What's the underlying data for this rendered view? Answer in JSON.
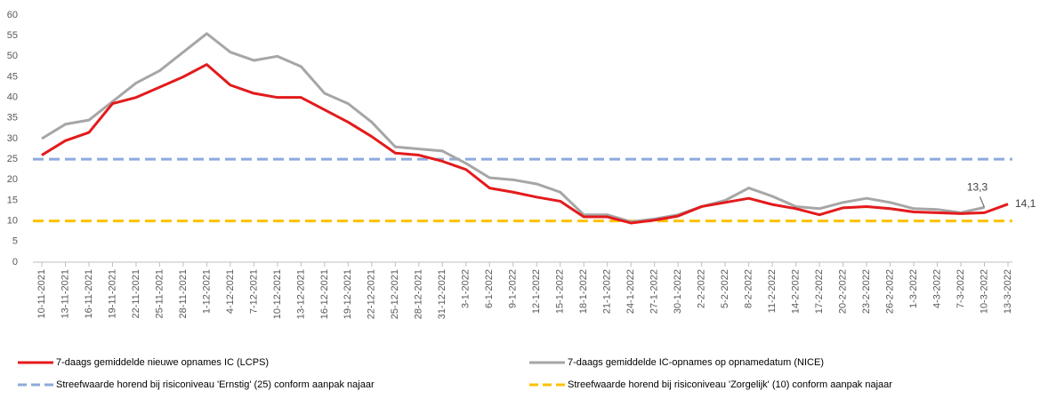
{
  "chart_data": {
    "type": "line",
    "categories": [
      "10-11-2021",
      "13-11-2021",
      "16-11-2021",
      "19-11-2021",
      "22-11-2021",
      "25-11-2021",
      "28-11-2021",
      "1-12-2021",
      "4-12-2021",
      "7-12-2021",
      "10-12-2021",
      "13-12-2021",
      "16-12-2021",
      "19-12-2021",
      "22-12-2021",
      "25-12-2021",
      "28-12-2021",
      "31-12-2021",
      "3-1-2022",
      "6-1-2022",
      "9-1-2022",
      "12-1-2022",
      "15-1-2022",
      "18-1-2022",
      "21-1-2022",
      "24-1-2022",
      "27-1-2022",
      "30-1-2022",
      "2-2-2022",
      "5-2-2022",
      "8-2-2022",
      "11-2-2022",
      "14-2-2022",
      "17-2-2022",
      "20-2-2022",
      "23-2-2022",
      "26-2-2022",
      "1-3-2022",
      "4-3-2022",
      "7-3-2022",
      "10-3-2022",
      "13-3-2022"
    ],
    "series": [
      {
        "name": "7-daags gemiddelde nieuwe opnames IC (LCPS)",
        "color": "#e31a1c",
        "values": [
          26,
          29.5,
          31.5,
          38.5,
          40,
          42.5,
          45,
          48,
          43,
          41,
          40,
          40,
          37,
          34,
          30.5,
          26.5,
          26,
          24.5,
          22.5,
          18,
          17,
          15.8,
          14.8,
          11,
          11,
          9.5,
          10.2,
          11.2,
          13.5,
          14.5,
          15.5,
          14,
          13,
          11.5,
          13.2,
          13.5,
          13,
          12.2,
          12,
          11.8,
          12,
          14.1
        ]
      },
      {
        "name": "7-daags gemiddelde IC-opnames op opnamedatum (NICE)",
        "color": "#a6a6a6",
        "values": [
          30,
          33.5,
          34.5,
          39,
          43.5,
          46.5,
          51,
          55.5,
          51,
          49,
          50,
          47.5,
          41,
          38.5,
          34,
          28,
          27.5,
          27,
          24,
          20.5,
          20,
          19,
          17,
          11.5,
          11.5,
          9.8,
          10.5,
          11.5,
          13.5,
          15,
          18,
          16,
          13.5,
          13,
          14.5,
          15.5,
          14.5,
          13,
          12.8,
          12,
          13.3,
          null
        ]
      }
    ],
    "reference_lines": [
      {
        "name": "Streefwaarde horend bij risiconiveau 'Ernstig' (25) conform aanpak najaar",
        "color": "#8eaadb",
        "value": 25
      },
      {
        "name": "Streefwaarde horend bij risiconiveau 'Zorgelijk' (10) conform aanpak najaar",
        "color": "#ffc000",
        "value": 10
      }
    ],
    "annotations": [
      {
        "text": "13,3",
        "x": "10-3-2022",
        "value": 13.3
      },
      {
        "text": "14,1",
        "x": "13-3-2022",
        "value": 14.1
      }
    ],
    "ylim": [
      0,
      60
    ],
    "yticks": [
      0,
      5,
      10,
      15,
      20,
      25,
      30,
      35,
      40,
      45,
      50,
      55,
      60
    ],
    "grid": false
  }
}
